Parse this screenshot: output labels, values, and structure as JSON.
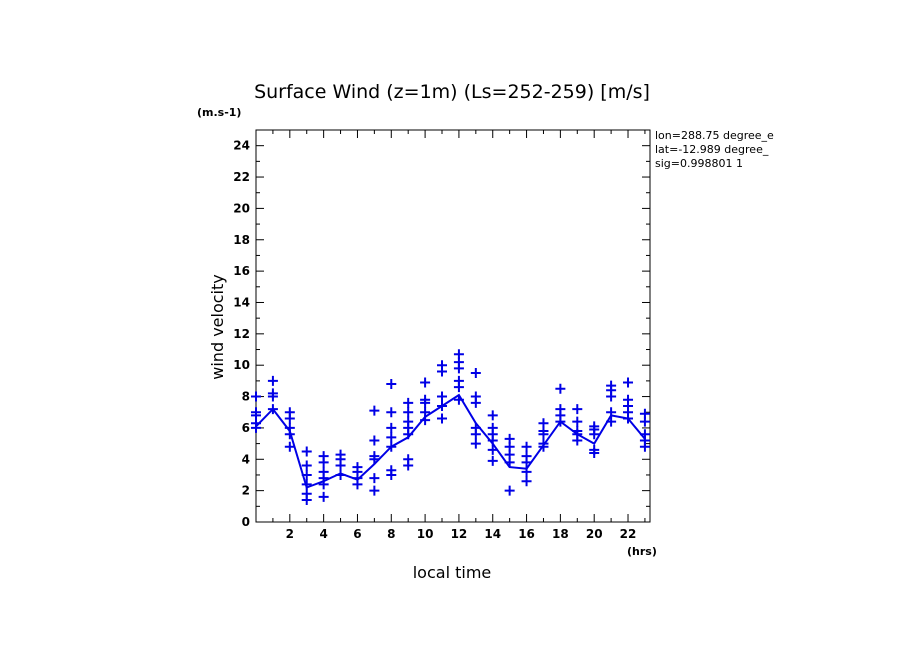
{
  "chart_data": {
    "type": "line",
    "title": "Surface Wind (z=1m) (Ls=252-259) [m/s]",
    "y_unit": "(m.s-1)",
    "x_unit": "(hrs)",
    "xlabel": "local time",
    "ylabel": "wind velocity",
    "xlim": [
      0,
      23.3
    ],
    "ylim": [
      0,
      25
    ],
    "x_ticks": [
      2,
      4,
      6,
      8,
      10,
      12,
      14,
      16,
      18,
      20,
      22
    ],
    "y_ticks": [
      0,
      2,
      4,
      6,
      8,
      10,
      12,
      14,
      16,
      18,
      20,
      22,
      24
    ],
    "info": [
      "lon=288.75 degree_e",
      "lat=-12.989 degree_",
      "sig=0.998801 1"
    ],
    "color": "#0000e6",
    "series": [
      {
        "kind": "line",
        "x": [
          0,
          1,
          2,
          3,
          4,
          5,
          6,
          7,
          8,
          9,
          10,
          11,
          12,
          13,
          14,
          15,
          16,
          17,
          18,
          19,
          20,
          21,
          22,
          23
        ],
        "values": [
          6.1,
          7.2,
          5.8,
          2.2,
          2.6,
          3.1,
          2.7,
          3.7,
          4.8,
          5.4,
          6.7,
          7.4,
          8.1,
          6.3,
          5.0,
          3.5,
          3.4,
          4.9,
          6.4,
          5.6,
          5.0,
          6.8,
          6.6,
          5.3
        ]
      },
      {
        "kind": "scatter",
        "marker": "+",
        "x": [
          0,
          0,
          0,
          0,
          0,
          1,
          1,
          1,
          1,
          2,
          2,
          2,
          2,
          2,
          3,
          3,
          3,
          3,
          3,
          3,
          4,
          4,
          4,
          4,
          4,
          4,
          5,
          5,
          5,
          5,
          6,
          6,
          6,
          6,
          7,
          7,
          7,
          7,
          7,
          7,
          8,
          8,
          8,
          8,
          8,
          8,
          8,
          9,
          9,
          9,
          9,
          9,
          9,
          9,
          10,
          10,
          10,
          10,
          10,
          11,
          11,
          11,
          11,
          11,
          12,
          12,
          12,
          12,
          12,
          12,
          13,
          13,
          13,
          13,
          13,
          13,
          14,
          14,
          14,
          14,
          14,
          14,
          15,
          15,
          15,
          15,
          15,
          16,
          16,
          16,
          16,
          16,
          17,
          17,
          17,
          17,
          17,
          18,
          18,
          18,
          18,
          19,
          19,
          19,
          19,
          19,
          20,
          20,
          20,
          20,
          20,
          21,
          21,
          21,
          21,
          21,
          22,
          22,
          22,
          22,
          22,
          23,
          23,
          23,
          23,
          23
        ],
        "values": [
          6.0,
          6.3,
          6.8,
          7.0,
          8.0,
          7.2,
          8.0,
          8.2,
          9.0,
          4.8,
          5.6,
          6.0,
          6.6,
          7.0,
          1.4,
          1.8,
          2.4,
          3.0,
          3.6,
          4.5,
          1.6,
          2.4,
          2.8,
          3.2,
          3.8,
          4.2,
          3.0,
          3.6,
          4.0,
          4.3,
          2.4,
          2.8,
          3.2,
          3.5,
          2.0,
          2.8,
          4.0,
          4.2,
          5.2,
          7.1,
          3.0,
          3.3,
          4.8,
          5.4,
          6.0,
          7.0,
          8.8,
          3.6,
          4.0,
          5.6,
          6.0,
          6.4,
          7.0,
          7.6,
          6.5,
          7.0,
          7.6,
          7.8,
          8.9,
          6.6,
          7.4,
          8.0,
          9.6,
          10.0,
          7.8,
          8.6,
          9.0,
          9.8,
          10.2,
          10.7,
          5.0,
          5.6,
          6.0,
          7.6,
          8.0,
          9.5,
          3.9,
          4.6,
          5.2,
          5.6,
          6.0,
          6.8,
          2.0,
          3.8,
          4.3,
          4.8,
          5.3,
          2.6,
          3.2,
          3.8,
          4.2,
          4.8,
          4.8,
          5.0,
          5.6,
          5.8,
          6.3,
          6.4,
          6.8,
          7.2,
          8.5,
          5.2,
          5.6,
          5.8,
          6.4,
          7.2,
          4.4,
          4.6,
          5.6,
          5.9,
          6.1,
          6.4,
          7.0,
          8.0,
          8.4,
          8.7,
          6.6,
          7.0,
          7.4,
          7.8,
          8.9,
          4.8,
          5.2,
          5.6,
          6.4,
          6.9
        ]
      }
    ],
    "grid": false,
    "legend": "none"
  }
}
